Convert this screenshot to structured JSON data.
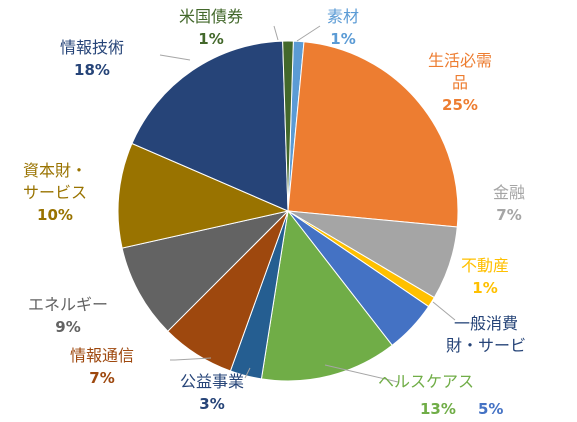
{
  "chart_data": {
    "type": "pie",
    "slices": [
      {
        "label": "素材",
        "percent_text": "1%",
        "value": 1,
        "color": "#5B9BD5"
      },
      {
        "label": "生活必需品",
        "percent_text": "25%",
        "value": 25,
        "color": "#ED7D31"
      },
      {
        "label": "金融",
        "percent_text": "7%",
        "value": 7,
        "color": "#A5A5A5"
      },
      {
        "label": "不動産",
        "percent_text": "1%",
        "value": 1,
        "color": "#FFC000"
      },
      {
        "label": "一般消費財・サービ",
        "percent_text": "5%",
        "value": 5,
        "color": "#4472C4"
      },
      {
        "label": "ヘルスケアス",
        "percent_text": "13%",
        "value": 13,
        "color": "#70AD47"
      },
      {
        "label": "公益事業",
        "percent_text": "3%",
        "value": 3,
        "color": "#255E91"
      },
      {
        "label": "情報通信",
        "percent_text": "7%",
        "value": 7,
        "color": "#9E480E"
      },
      {
        "label": "エネルギー",
        "percent_text": "9%",
        "value": 9,
        "color": "#636363"
      },
      {
        "label": "資本財・サービス",
        "percent_text": "10%",
        "value": 10,
        "color": "#997300"
      },
      {
        "label": "情報技術",
        "percent_text": "18%",
        "value": 18,
        "color": "#264478"
      },
      {
        "label": "米国債券",
        "percent_text": "1%",
        "value": 1,
        "color": "#43682B"
      }
    ]
  }
}
